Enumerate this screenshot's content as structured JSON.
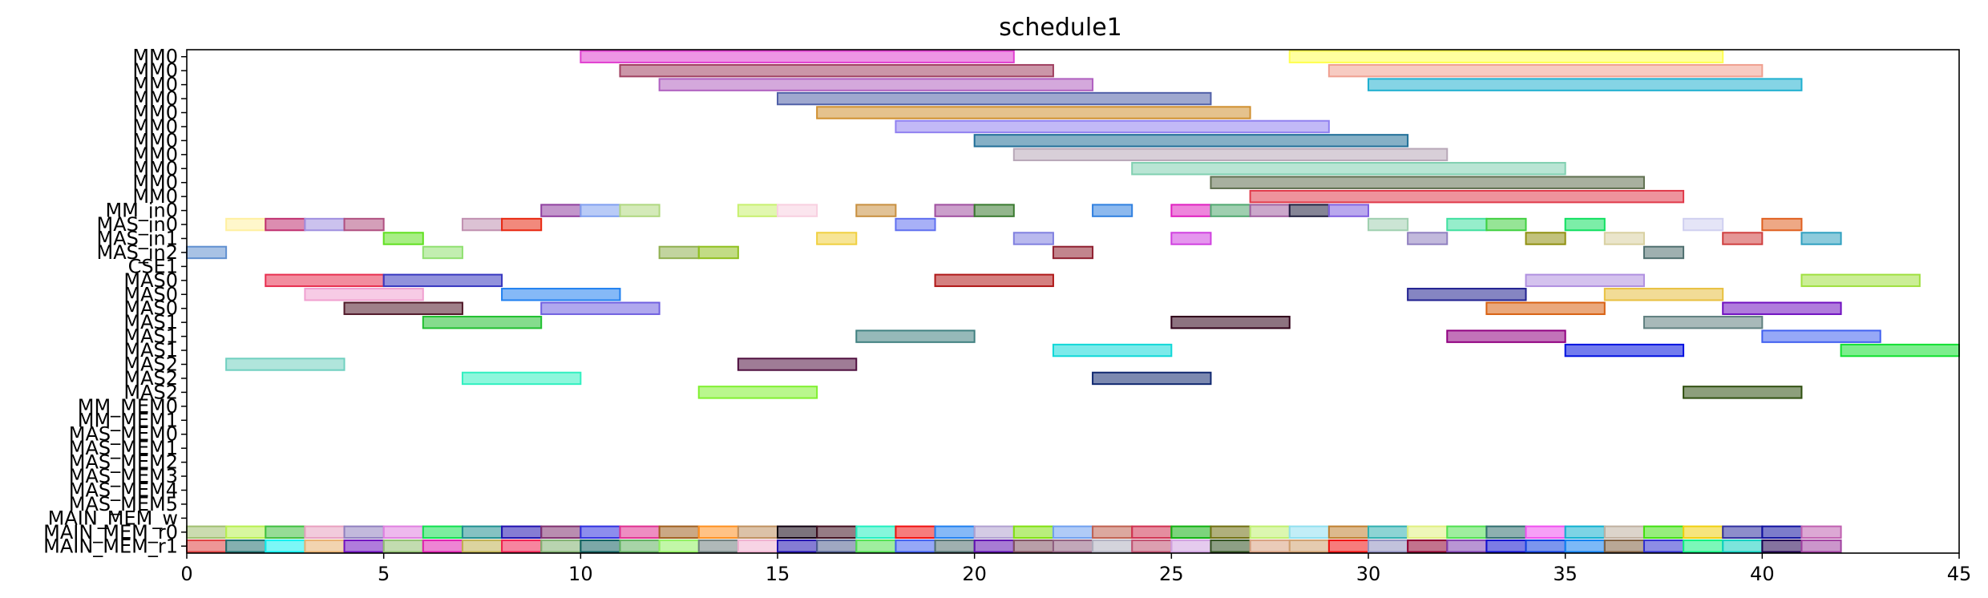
{
  "chart_data": {
    "type": "gantt",
    "title": "schedule1",
    "xlim": [
      0,
      45
    ],
    "xticks": [
      0,
      5,
      10,
      15,
      20,
      25,
      30,
      35,
      40,
      45
    ],
    "rows": [
      "MM0",
      "MM0",
      "MM0",
      "MM0",
      "MM0",
      "MM0",
      "MM0",
      "MM0",
      "MM0",
      "MM0",
      "MM0",
      "MM_in0",
      "MAS_in0",
      "MAS_in1",
      "MAS_in2",
      "CSE1",
      "MAS0",
      "MAS0",
      "MAS0",
      "MAS1",
      "MAS1",
      "MAS1",
      "MAS2",
      "MAS2",
      "MAS2",
      "MM_MEM0",
      "MM_MEM1",
      "MAS_MEM0",
      "MAS_MEM1",
      "MAS_MEM2",
      "MAS_MEM3",
      "MAS_MEM4",
      "MAS_MEM5",
      "MAIN_MEM_w",
      "MAIN_MEM_r0",
      "MAIN_MEM_r1"
    ],
    "tasks": [
      {
        "row": 0,
        "start": 10,
        "end": 21,
        "color": "#e040d0"
      },
      {
        "row": 0,
        "start": 28,
        "end": 39,
        "color": "#ffff50"
      },
      {
        "row": 1,
        "start": 11,
        "end": 22,
        "color": "#a04060"
      },
      {
        "row": 1,
        "start": 29,
        "end": 40,
        "color": "#f0a090"
      },
      {
        "row": 2,
        "start": 12,
        "end": 23,
        "color": "#b060c0"
      },
      {
        "row": 2,
        "start": 30,
        "end": 41,
        "color": "#20b0d0"
      },
      {
        "row": 3,
        "start": 15,
        "end": 26,
        "color": "#5060a8"
      },
      {
        "row": 4,
        "start": 16,
        "end": 27,
        "color": "#d09030"
      },
      {
        "row": 5,
        "start": 18,
        "end": 29,
        "color": "#9080f0"
      },
      {
        "row": 6,
        "start": 20,
        "end": 31,
        "color": "#206f98"
      },
      {
        "row": 7,
        "start": 21,
        "end": 32,
        "color": "#b8a8b8"
      },
      {
        "row": 8,
        "start": 24,
        "end": 35,
        "color": "#80d0b0"
      },
      {
        "row": 9,
        "start": 26,
        "end": 37,
        "color": "#607050"
      },
      {
        "row": 10,
        "start": 27,
        "end": 38,
        "color": "#e03a4a"
      },
      {
        "row": 11,
        "start": 9,
        "end": 10,
        "color": "#9040a0"
      },
      {
        "row": 11,
        "start": 10,
        "end": 11,
        "color": "#80a0f0"
      },
      {
        "row": 11,
        "start": 11,
        "end": 12,
        "color": "#b0d880"
      },
      {
        "row": 11,
        "start": 14,
        "end": 15,
        "color": "#c8f070"
      },
      {
        "row": 11,
        "start": 15,
        "end": 16,
        "color": "#f8d0e0"
      },
      {
        "row": 11,
        "start": 17,
        "end": 18,
        "color": "#c89040"
      },
      {
        "row": 11,
        "start": 19,
        "end": 20,
        "color": "#a050a0"
      },
      {
        "row": 11,
        "start": 20,
        "end": 21,
        "color": "#3a7a30"
      },
      {
        "row": 11,
        "start": 23,
        "end": 24,
        "color": "#3080e0"
      },
      {
        "row": 11,
        "start": 25,
        "end": 26,
        "color": "#e020c0"
      },
      {
        "row": 11,
        "start": 26,
        "end": 27,
        "color": "#50a870"
      },
      {
        "row": 11,
        "start": 27,
        "end": 28,
        "color": "#a060a0"
      },
      {
        "row": 11,
        "start": 28,
        "end": 29,
        "color": "#202040"
      },
      {
        "row": 11,
        "start": 29,
        "end": 30,
        "color": "#8060e0"
      },
      {
        "row": 12,
        "start": 1,
        "end": 2,
        "color": "#fff0a0"
      },
      {
        "row": 12,
        "start": 2,
        "end": 3,
        "color": "#c03070"
      },
      {
        "row": 12,
        "start": 3,
        "end": 4,
        "color": "#a090e0"
      },
      {
        "row": 12,
        "start": 4,
        "end": 5,
        "color": "#b05080"
      },
      {
        "row": 12,
        "start": 7,
        "end": 8,
        "color": "#c090b0"
      },
      {
        "row": 12,
        "start": 8,
        "end": 9,
        "color": "#e82810"
      },
      {
        "row": 12,
        "start": 18,
        "end": 19,
        "color": "#6070f0"
      },
      {
        "row": 12,
        "start": 30,
        "end": 31,
        "color": "#a0d0b0"
      },
      {
        "row": 12,
        "start": 32,
        "end": 33,
        "color": "#40e0a0"
      },
      {
        "row": 12,
        "start": 33,
        "end": 34,
        "color": "#40d040"
      },
      {
        "row": 12,
        "start": 35,
        "end": 36,
        "color": "#10e060"
      },
      {
        "row": 12,
        "start": 38,
        "end": 39,
        "color": "#d0d0f0"
      },
      {
        "row": 12,
        "start": 40,
        "end": 41,
        "color": "#e06020"
      },
      {
        "row": 13,
        "start": 5,
        "end": 6,
        "color": "#60e020"
      },
      {
        "row": 13,
        "start": 16,
        "end": 17,
        "color": "#f0d040"
      },
      {
        "row": 13,
        "start": 21,
        "end": 22,
        "color": "#8080e0"
      },
      {
        "row": 13,
        "start": 25,
        "end": 26,
        "color": "#d040e0"
      },
      {
        "row": 13,
        "start": 31,
        "end": 32,
        "color": "#9080c0"
      },
      {
        "row": 13,
        "start": 34,
        "end": 35,
        "color": "#909010"
      },
      {
        "row": 13,
        "start": 36,
        "end": 37,
        "color": "#d8d0a0"
      },
      {
        "row": 13,
        "start": 39,
        "end": 40,
        "color": "#d04040"
      },
      {
        "row": 13,
        "start": 41,
        "end": 42,
        "color": "#30a0c0"
      },
      {
        "row": 14,
        "start": 0,
        "end": 1,
        "color": "#6090d0"
      },
      {
        "row": 14,
        "start": 6,
        "end": 7,
        "color": "#90e070"
      },
      {
        "row": 14,
        "start": 12,
        "end": 13,
        "color": "#90b050"
      },
      {
        "row": 14,
        "start": 13,
        "end": 14,
        "color": "#90c020"
      },
      {
        "row": 14,
        "start": 22,
        "end": 23,
        "color": "#902030"
      },
      {
        "row": 14,
        "start": 37,
        "end": 38,
        "color": "#507070"
      },
      {
        "row": 16,
        "start": 2,
        "end": 5,
        "color": "#e83050"
      },
      {
        "row": 16,
        "start": 5,
        "end": 8,
        "color": "#3838c0"
      },
      {
        "row": 16,
        "start": 19,
        "end": 22,
        "color": "#b01818"
      },
      {
        "row": 16,
        "start": 34,
        "end": 37,
        "color": "#b090e0"
      },
      {
        "row": 16,
        "start": 41,
        "end": 44,
        "color": "#a0e040"
      },
      {
        "row": 17,
        "start": 3,
        "end": 6,
        "color": "#f0a0d0"
      },
      {
        "row": 17,
        "start": 8,
        "end": 11,
        "color": "#2080f0"
      },
      {
        "row": 17,
        "start": 31,
        "end": 34,
        "color": "#202090"
      },
      {
        "row": 17,
        "start": 36,
        "end": 39,
        "color": "#e8c040"
      },
      {
        "row": 18,
        "start": 4,
        "end": 7,
        "color": "#501828"
      },
      {
        "row": 18,
        "start": 9,
        "end": 12,
        "color": "#7060e0"
      },
      {
        "row": 18,
        "start": 33,
        "end": 36,
        "color": "#d86010"
      },
      {
        "row": 18,
        "start": 39,
        "end": 42,
        "color": "#7010c0"
      },
      {
        "row": 19,
        "start": 6,
        "end": 9,
        "color": "#20c030"
      },
      {
        "row": 19,
        "start": 25,
        "end": 28,
        "color": "#300018"
      },
      {
        "row": 19,
        "start": 37,
        "end": 40,
        "color": "#608080"
      },
      {
        "row": 20,
        "start": 17,
        "end": 20,
        "color": "#408080"
      },
      {
        "row": 20,
        "start": 32,
        "end": 35,
        "color": "#900080"
      },
      {
        "row": 20,
        "start": 40,
        "end": 43,
        "color": "#4060f0"
      },
      {
        "row": 21,
        "start": 22,
        "end": 25,
        "color": "#10d8d8"
      },
      {
        "row": 21,
        "start": 35,
        "end": 38,
        "color": "#0010e0"
      },
      {
        "row": 21,
        "start": 42,
        "end": 45,
        "color": "#10e030"
      },
      {
        "row": 22,
        "start": 1,
        "end": 4,
        "color": "#70d0c0"
      },
      {
        "row": 22,
        "start": 14,
        "end": 17,
        "color": "#501040"
      },
      {
        "row": 23,
        "start": 7,
        "end": 10,
        "color": "#30f0c0"
      },
      {
        "row": 23,
        "start": 23,
        "end": 26,
        "color": "#102870"
      },
      {
        "row": 24,
        "start": 13,
        "end": 16,
        "color": "#80f030"
      },
      {
        "row": 24,
        "start": 38,
        "end": 41,
        "color": "#305010"
      },
      {
        "row": 34,
        "start": 0,
        "end": 1,
        "color": "#a0c070"
      },
      {
        "row": 34,
        "start": 1,
        "end": 2,
        "color": "#b8f050"
      },
      {
        "row": 34,
        "start": 2,
        "end": 3,
        "color": "#40c040"
      },
      {
        "row": 34,
        "start": 3,
        "end": 4,
        "color": "#e8a0c0"
      },
      {
        "row": 34,
        "start": 4,
        "end": 5,
        "color": "#9080c0"
      },
      {
        "row": 34,
        "start": 5,
        "end": 6,
        "color": "#e080e0"
      },
      {
        "row": 34,
        "start": 6,
        "end": 7,
        "color": "#10e050"
      },
      {
        "row": 34,
        "start": 7,
        "end": 8,
        "color": "#209090"
      },
      {
        "row": 34,
        "start": 8,
        "end": 9,
        "color": "#2010b0"
      },
      {
        "row": 34,
        "start": 9,
        "end": 10,
        "color": "#803070"
      },
      {
        "row": 34,
        "start": 10,
        "end": 11,
        "color": "#3030e0"
      },
      {
        "row": 34,
        "start": 11,
        "end": 12,
        "color": "#e03090"
      },
      {
        "row": 34,
        "start": 12,
        "end": 13,
        "color": "#a06020"
      },
      {
        "row": 34,
        "start": 13,
        "end": 14,
        "color": "#ff9020"
      },
      {
        "row": 34,
        "start": 14,
        "end": 15,
        "color": "#c09060"
      },
      {
        "row": 34,
        "start": 15,
        "end": 16,
        "color": "#100010"
      },
      {
        "row": 34,
        "start": 16,
        "end": 17,
        "color": "#401020"
      },
      {
        "row": 34,
        "start": 17,
        "end": 18,
        "color": "#20f0c0"
      },
      {
        "row": 34,
        "start": 18,
        "end": 19,
        "color": "#f01010"
      },
      {
        "row": 34,
        "start": 19,
        "end": 20,
        "color": "#2080f0"
      },
      {
        "row": 34,
        "start": 20,
        "end": 21,
        "color": "#b0a0d0"
      },
      {
        "row": 34,
        "start": 21,
        "end": 22,
        "color": "#80e010"
      },
      {
        "row": 34,
        "start": 22,
        "end": 23,
        "color": "#70a0f0"
      },
      {
        "row": 34,
        "start": 23,
        "end": 24,
        "color": "#c06050"
      },
      {
        "row": 34,
        "start": 24,
        "end": 25,
        "color": "#d03050"
      },
      {
        "row": 34,
        "start": 25,
        "end": 26,
        "color": "#10b010"
      },
      {
        "row": 34,
        "start": 26,
        "end": 27,
        "color": "#707010"
      },
      {
        "row": 34,
        "start": 27,
        "end": 28,
        "color": "#c0f070"
      },
      {
        "row": 34,
        "start": 28,
        "end": 29,
        "color": "#90e0f0"
      },
      {
        "row": 34,
        "start": 29,
        "end": 30,
        "color": "#c08030"
      },
      {
        "row": 34,
        "start": 30,
        "end": 31,
        "color": "#30b0b0"
      },
      {
        "row": 34,
        "start": 31,
        "end": 32,
        "color": "#e0f080"
      },
      {
        "row": 34,
        "start": 32,
        "end": 33,
        "color": "#50e050"
      },
      {
        "row": 34,
        "start": 33,
        "end": 34,
        "color": "#307070"
      },
      {
        "row": 34,
        "start": 34,
        "end": 35,
        "color": "#f050f0"
      },
      {
        "row": 34,
        "start": 35,
        "end": 36,
        "color": "#10b0d0"
      },
      {
        "row": 34,
        "start": 36,
        "end": 37,
        "color": "#c0b0a0"
      },
      {
        "row": 34,
        "start": 37,
        "end": 38,
        "color": "#40e010"
      },
      {
        "row": 34,
        "start": 38,
        "end": 39,
        "color": "#f0d010"
      },
      {
        "row": 34,
        "start": 39,
        "end": 40,
        "color": "#3030a0"
      },
      {
        "row": 34,
        "start": 40,
        "end": 41,
        "color": "#1010a0"
      },
      {
        "row": 34,
        "start": 41,
        "end": 42,
        "color": "#c060b0"
      },
      {
        "row": 35,
        "start": 0,
        "end": 1,
        "color": "#e04040"
      },
      {
        "row": 35,
        "start": 1,
        "end": 2,
        "color": "#207070"
      },
      {
        "row": 35,
        "start": 2,
        "end": 3,
        "color": "#10f0f0"
      },
      {
        "row": 35,
        "start": 3,
        "end": 4,
        "color": "#e8b070"
      },
      {
        "row": 35,
        "start": 4,
        "end": 5,
        "color": "#7010c0"
      },
      {
        "row": 35,
        "start": 5,
        "end": 6,
        "color": "#90c070"
      },
      {
        "row": 35,
        "start": 6,
        "end": 7,
        "color": "#e020b0"
      },
      {
        "row": 35,
        "start": 7,
        "end": 8,
        "color": "#c0b050"
      },
      {
        "row": 35,
        "start": 8,
        "end": 9,
        "color": "#f02050"
      },
      {
        "row": 35,
        "start": 9,
        "end": 10,
        "color": "#80b070"
      },
      {
        "row": 35,
        "start": 10,
        "end": 11,
        "color": "#106060"
      },
      {
        "row": 35,
        "start": 11,
        "end": 12,
        "color": "#60b060"
      },
      {
        "row": 35,
        "start": 12,
        "end": 13,
        "color": "#90f060"
      },
      {
        "row": 35,
        "start": 13,
        "end": 14,
        "color": "#708080"
      },
      {
        "row": 35,
        "start": 14,
        "end": 15,
        "color": "#f0b0d0"
      },
      {
        "row": 35,
        "start": 15,
        "end": 16,
        "color": "#2010b0"
      },
      {
        "row": 35,
        "start": 16,
        "end": 17,
        "color": "#506090"
      },
      {
        "row": 35,
        "start": 17,
        "end": 18,
        "color": "#50e050"
      },
      {
        "row": 35,
        "start": 18,
        "end": 19,
        "color": "#4060f0"
      },
      {
        "row": 35,
        "start": 19,
        "end": 20,
        "color": "#507070"
      },
      {
        "row": 35,
        "start": 20,
        "end": 21,
        "color": "#6010b0"
      },
      {
        "row": 35,
        "start": 21,
        "end": 22,
        "color": "#805060"
      },
      {
        "row": 35,
        "start": 22,
        "end": 23,
        "color": "#906080"
      },
      {
        "row": 35,
        "start": 23,
        "end": 24,
        "color": "#b0b0c0"
      },
      {
        "row": 35,
        "start": 24,
        "end": 25,
        "color": "#c05070"
      },
      {
        "row": 35,
        "start": 25,
        "end": 26,
        "color": "#d0a0e0"
      },
      {
        "row": 35,
        "start": 26,
        "end": 27,
        "color": "#305020"
      },
      {
        "row": 35,
        "start": 27,
        "end": 28,
        "color": "#d8a080"
      },
      {
        "row": 35,
        "start": 28,
        "end": 29,
        "color": "#d0a070"
      },
      {
        "row": 35,
        "start": 29,
        "end": 30,
        "color": "#f01010"
      },
      {
        "row": 35,
        "start": 30,
        "end": 31,
        "color": "#9090c0"
      },
      {
        "row": 35,
        "start": 31,
        "end": 32,
        "color": "#900030"
      },
      {
        "row": 35,
        "start": 32,
        "end": 33,
        "color": "#8040b0"
      },
      {
        "row": 35,
        "start": 33,
        "end": 34,
        "color": "#1010d0"
      },
      {
        "row": 35,
        "start": 34,
        "end": 35,
        "color": "#1040e0"
      },
      {
        "row": 35,
        "start": 35,
        "end": 36,
        "color": "#1080f0"
      },
      {
        "row": 35,
        "start": 36,
        "end": 37,
        "color": "#806040"
      },
      {
        "row": 35,
        "start": 37,
        "end": 38,
        "color": "#3030d0"
      },
      {
        "row": 35,
        "start": 38,
        "end": 39,
        "color": "#10f080"
      },
      {
        "row": 35,
        "start": 39,
        "end": 40,
        "color": "#10d0c0"
      },
      {
        "row": 35,
        "start": 40,
        "end": 41,
        "color": "#200050"
      },
      {
        "row": 35,
        "start": 41,
        "end": 42,
        "color": "#a040a0"
      }
    ]
  }
}
